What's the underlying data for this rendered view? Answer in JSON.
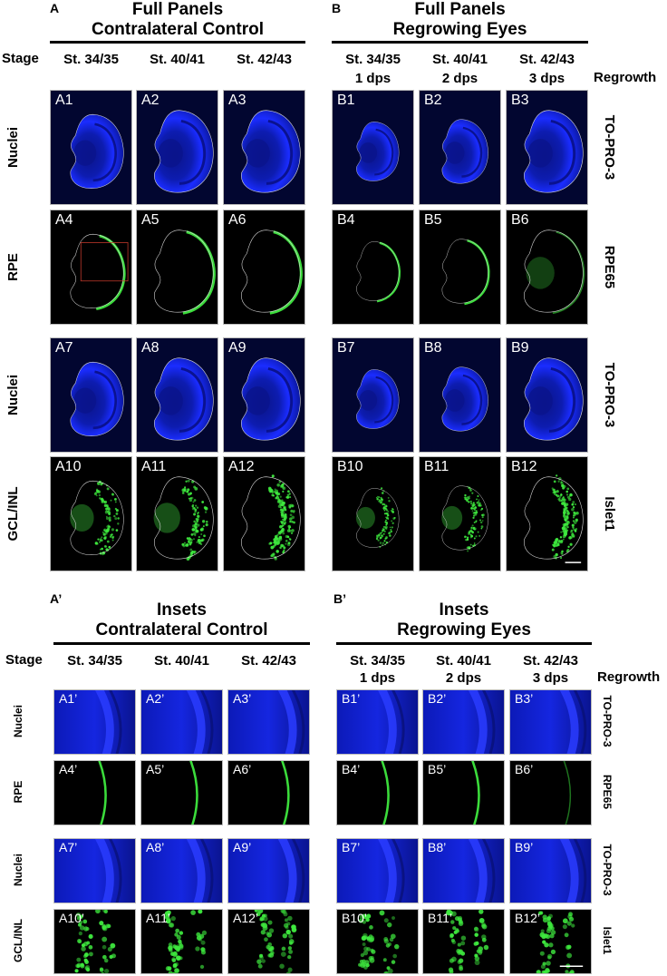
{
  "top": {
    "A": {
      "letter": "A",
      "title1": "Full Panels",
      "title2": "Contralateral Control",
      "stages": [
        "St. 34/35",
        "St. 40/41",
        "St. 42/43"
      ]
    },
    "B": {
      "letter": "B",
      "title1": "Full Panels",
      "title2": "Regrowing Eyes",
      "stages": [
        "St. 34/35",
        "St. 40/41",
        "St. 42/43"
      ],
      "dps": [
        "1 dps",
        "2 dps",
        "3 dps"
      ]
    },
    "stage_label": "Stage",
    "regrowth_label": "Regrowth",
    "row_labels_left": [
      "Nuclei",
      "RPE",
      "Nuclei",
      "GCL/INL"
    ],
    "row_labels_right": [
      "TO-PRO-3",
      "RPE65",
      "TO-PRO-3",
      "Islet1"
    ],
    "panels_A": [
      "A1",
      "A2",
      "A3",
      "A4",
      "A5",
      "A6",
      "A7",
      "A8",
      "A9",
      "A10",
      "A11",
      "A12"
    ],
    "panels_B": [
      "B1",
      "B2",
      "B3",
      "B4",
      "B5",
      "B6",
      "B7",
      "B8",
      "B9",
      "B10",
      "B11",
      "B12"
    ]
  },
  "bottom": {
    "A": {
      "letter": "A’",
      "title1": "Insets",
      "title2": "Contralateral Control",
      "stages": [
        "St. 34/35",
        "St. 40/41",
        "St. 42/43"
      ]
    },
    "B": {
      "letter": "B’",
      "title1": "Insets",
      "title2": "Regrowing Eyes",
      "stages": [
        "St. 34/35",
        "St. 40/41",
        "St. 42/43"
      ],
      "dps": [
        "1 dps",
        "2 dps",
        "3 dps"
      ]
    },
    "stage_label": "Stage",
    "regrowth_label": "Regrowth",
    "row_labels_left": [
      "Nuclei",
      "RPE",
      "Nuclei",
      "GCL/INL"
    ],
    "row_labels_right": [
      "TO-PRO-3",
      "RPE65",
      "TO-PRO-3",
      "Islet1"
    ],
    "panels_A": [
      "A1’",
      "A2’",
      "A3’",
      "A4’",
      "A5’",
      "A6’",
      "A7’",
      "A8’",
      "A9’",
      "A10’",
      "A11’",
      "A12’"
    ],
    "panels_B": [
      "B1’",
      "B2’",
      "B3’",
      "B4’",
      "B5’",
      "B6’",
      "B7’",
      "B8’",
      "B9’",
      "B10’",
      "B11’",
      "B12’"
    ]
  },
  "row_stains": [
    "nuclei",
    "rpe",
    "nuclei",
    "islet"
  ],
  "colors": {
    "nuclei": "#1a2cff",
    "green": "#3ee83e",
    "outline": "#d8d8d8",
    "inset_box": "#c0392b"
  }
}
